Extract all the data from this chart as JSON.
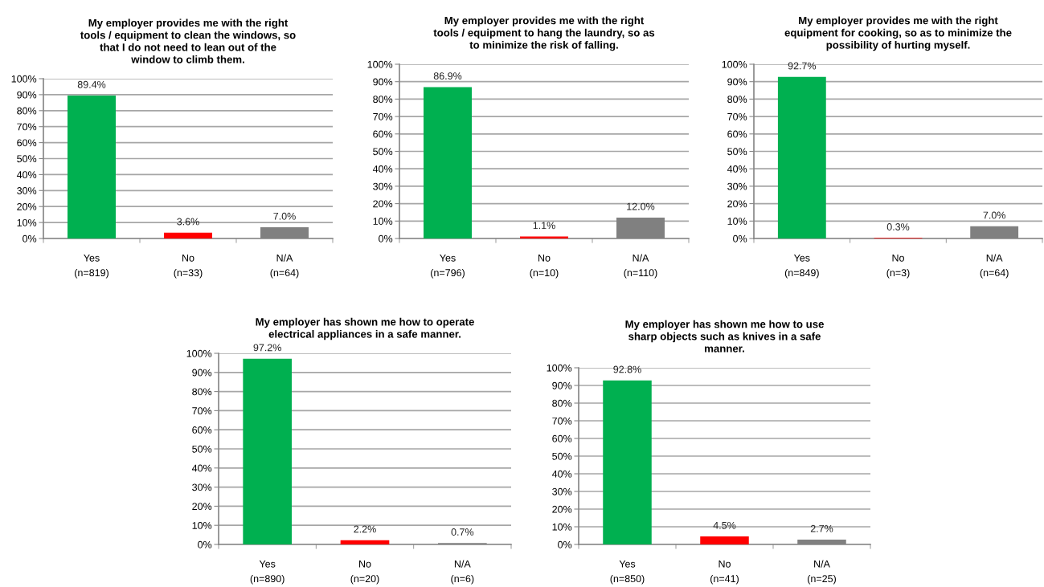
{
  "chart_data": [
    {
      "type": "bar",
      "title": "My employer provides me with the right\ntools / equipment to clean the windows, so\nthat I do not need to lean out of the\nwindow to climb them.",
      "categories": [
        "Yes\n(n=819)",
        "No\n(n=33)",
        "N/A\n(n=64)"
      ],
      "values": [
        89.4,
        3.6,
        7.0
      ],
      "value_labels": [
        "89.4%",
        "3.6%",
        "7.0%"
      ],
      "colors": [
        "#00b050",
        "#ff0000",
        "#808080"
      ],
      "ylim": [
        0,
        100
      ],
      "yticks": [
        {
          "value": 0,
          "label": "0%"
        },
        {
          "value": 10,
          "label": "10%"
        },
        {
          "value": 20,
          "label": "20%"
        },
        {
          "value": 30,
          "label": "30%"
        },
        {
          "value": 40,
          "label": "40%"
        },
        {
          "value": 50,
          "label": "50%"
        },
        {
          "value": 60,
          "label": "60%"
        },
        {
          "value": 70,
          "label": "70%"
        },
        {
          "value": 80,
          "label": "80%"
        },
        {
          "value": 90,
          "label": "90%"
        },
        {
          "value": 100,
          "label": "100%"
        }
      ],
      "grid": "y",
      "legend": false
    },
    {
      "type": "bar",
      "title": "My employer provides me with the right\ntools / equipment to hang the laundry, so as\nto minimize the risk of falling.",
      "categories": [
        "Yes\n(n=796)",
        "No\n(n=10)",
        "N/A\n(n=110)"
      ],
      "values": [
        86.9,
        1.1,
        12.0
      ],
      "value_labels": [
        "86.9%",
        "1.1%",
        "12.0%"
      ],
      "colors": [
        "#00b050",
        "#ff0000",
        "#808080"
      ],
      "ylim": [
        0,
        100
      ],
      "yticks": [
        {
          "value": 0,
          "label": "0%"
        },
        {
          "value": 10,
          "label": "10%"
        },
        {
          "value": 20,
          "label": "20%"
        },
        {
          "value": 30,
          "label": "30%"
        },
        {
          "value": 40,
          "label": "40%"
        },
        {
          "value": 50,
          "label": "50%"
        },
        {
          "value": 60,
          "label": "60%"
        },
        {
          "value": 70,
          "label": "70%"
        },
        {
          "value": 80,
          "label": "80%"
        },
        {
          "value": 90,
          "label": "90%"
        },
        {
          "value": 100,
          "label": "100%"
        }
      ],
      "grid": "y",
      "legend": false
    },
    {
      "type": "bar",
      "title": "My employer provides me with the right\nequipment for cooking, so as to minimize the\npossibility of hurting myself.",
      "categories": [
        "Yes\n(n=849)",
        "No\n(n=3)",
        "N/A\n(n=64)"
      ],
      "values": [
        92.7,
        0.3,
        7.0
      ],
      "value_labels": [
        "92.7%",
        "0.3%",
        "7.0%"
      ],
      "colors": [
        "#00b050",
        "#ff0000",
        "#808080"
      ],
      "ylim": [
        0,
        100
      ],
      "yticks": [
        {
          "value": 0,
          "label": "0%"
        },
        {
          "value": 10,
          "label": "10%"
        },
        {
          "value": 20,
          "label": "20%"
        },
        {
          "value": 30,
          "label": "30%"
        },
        {
          "value": 40,
          "label": "40%"
        },
        {
          "value": 50,
          "label": "50%"
        },
        {
          "value": 60,
          "label": "60%"
        },
        {
          "value": 70,
          "label": "70%"
        },
        {
          "value": 80,
          "label": "80%"
        },
        {
          "value": 90,
          "label": "90%"
        },
        {
          "value": 100,
          "label": "100%"
        }
      ],
      "grid": "y",
      "legend": false
    },
    {
      "type": "bar",
      "title": "My employer has shown me how to operate\nelectrical appliances in a safe manner.",
      "categories": [
        "Yes\n(n=890)",
        "No\n(n=20)",
        "N/A\n(n=6)"
      ],
      "values": [
        97.2,
        2.2,
        0.7
      ],
      "value_labels": [
        "97.2%",
        "2.2%",
        "0.7%"
      ],
      "colors": [
        "#00b050",
        "#ff0000",
        "#808080"
      ],
      "ylim": [
        0,
        100
      ],
      "yticks": [
        {
          "value": 0,
          "label": "0%"
        },
        {
          "value": 10,
          "label": "10%"
        },
        {
          "value": 20,
          "label": "20%"
        },
        {
          "value": 30,
          "label": "30%"
        },
        {
          "value": 40,
          "label": "40%"
        },
        {
          "value": 50,
          "label": "50%"
        },
        {
          "value": 60,
          "label": "60%"
        },
        {
          "value": 70,
          "label": "70%"
        },
        {
          "value": 80,
          "label": "80%"
        },
        {
          "value": 90,
          "label": "90%"
        },
        {
          "value": 100,
          "label": "100%"
        }
      ],
      "grid": "y",
      "legend": false
    },
    {
      "type": "bar",
      "title": "My employer has shown me how to use\nsharp objects such as knives in a safe\nmanner.",
      "categories": [
        "Yes\n(n=850)",
        "No\n(n=41)",
        "N/A\n(n=25)"
      ],
      "values": [
        92.8,
        4.5,
        2.7
      ],
      "value_labels": [
        "92.8%",
        "4.5%",
        "2.7%"
      ],
      "colors": [
        "#00b050",
        "#ff0000",
        "#808080"
      ],
      "ylim": [
        0,
        100
      ],
      "yticks": [
        {
          "value": 0,
          "label": "0%"
        },
        {
          "value": 10,
          "label": "10%"
        },
        {
          "value": 20,
          "label": "20%"
        },
        {
          "value": 30,
          "label": "30%"
        },
        {
          "value": 40,
          "label": "40%"
        },
        {
          "value": 50,
          "label": "50%"
        },
        {
          "value": 60,
          "label": "60%"
        },
        {
          "value": 70,
          "label": "70%"
        },
        {
          "value": 80,
          "label": "80%"
        },
        {
          "value": 90,
          "label": "90%"
        },
        {
          "value": 100,
          "label": "100%"
        }
      ],
      "grid": "y",
      "legend": false
    }
  ]
}
